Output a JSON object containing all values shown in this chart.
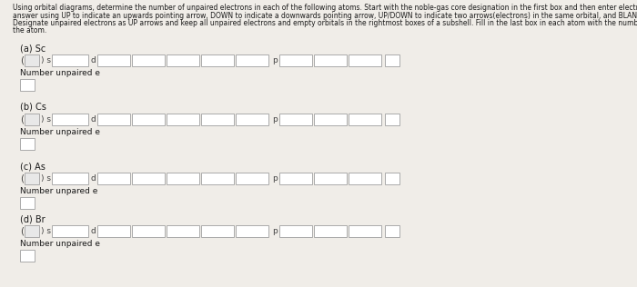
{
  "title_lines": [
    "Using orbital diagrams, determine the number of unpaired electrons in each of the following atoms. Start with the noble-gas core designation in the first box and then enter electron arrows. Enter your",
    "answer using UP to indicate an upwards pointing arrow, DOWN to indicate a downwards pointing arrow, UP/DOWN to indicate two arrows(electrons) in the same orbital, and BLANK to indicate no arrows.",
    "Designate unpaired electrons as UP arrows and keep all unpaired electrons and empty orbitals in the rightmost boxes of a subshell. Fill in the last box in each atom with the number of unpaired electrons in",
    "the atom."
  ],
  "atoms": [
    "Sc",
    "Cs",
    "As",
    "Br"
  ],
  "atom_labels": [
    "(a) Sc",
    "(b) Cs",
    "(c) As",
    "(d) Br"
  ],
  "sublabels": [
    "Number unpaired e",
    "Number unpaired e",
    "Number unpared e",
    "Number unpaired e"
  ],
  "bg_color": "#f0ede8",
  "box_fc": "#ffffff",
  "box_ec": "#aaaaaa",
  "noble_fc": "#e8e8e8",
  "text_color": "#1a1a1a",
  "subtext_color": "#444444",
  "title_fontsize": 5.8,
  "label_fontsize": 7.0,
  "sublabel_fontsize": 6.5
}
